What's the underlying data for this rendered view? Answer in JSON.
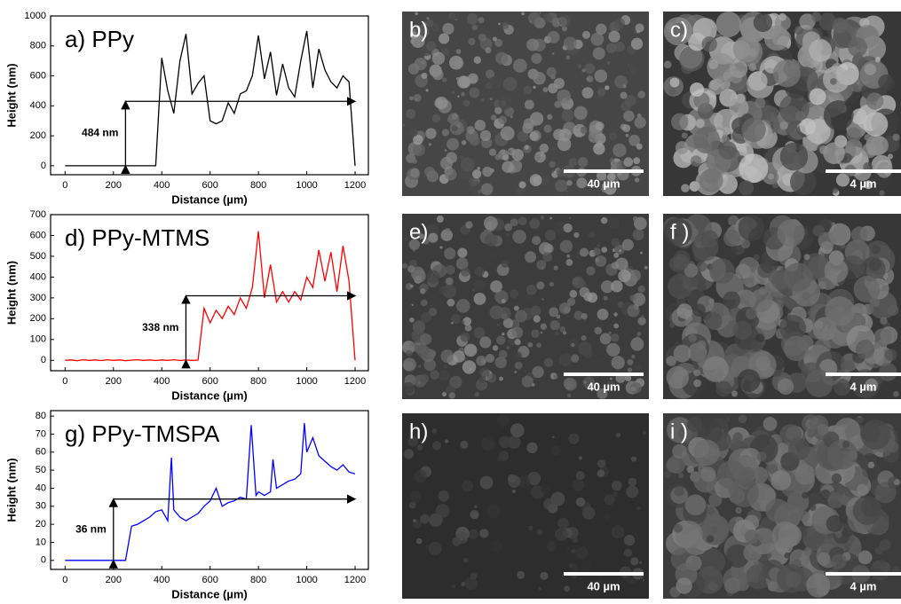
{
  "chart_data": [
    {
      "type": "line",
      "title": "a) PPy",
      "x_label": "Distance (µm)",
      "y_label": "Height (nm)",
      "color": "#000000",
      "x": [
        0,
        25,
        50,
        75,
        100,
        125,
        150,
        175,
        200,
        225,
        250,
        275,
        300,
        325,
        350,
        375,
        400,
        425,
        450,
        475,
        500,
        525,
        550,
        575,
        600,
        625,
        650,
        675,
        700,
        725,
        750,
        775,
        800,
        825,
        850,
        875,
        900,
        925,
        950,
        975,
        1000,
        1025,
        1050,
        1075,
        1100,
        1125,
        1150,
        1175,
        1200
      ],
      "values": [
        0,
        0,
        0,
        0,
        0,
        0,
        0,
        0,
        0,
        0,
        0,
        0,
        0,
        0,
        0,
        0,
        720,
        500,
        350,
        700,
        880,
        480,
        550,
        600,
        300,
        280,
        300,
        420,
        350,
        480,
        500,
        600,
        870,
        580,
        760,
        470,
        680,
        520,
        460,
        700,
        900,
        520,
        780,
        640,
        560,
        520,
        600,
        560,
        0
      ],
      "xlim": [
        -60,
        1255
      ],
      "ylim": [
        -60,
        1000
      ],
      "xticks": [
        0,
        200,
        400,
        600,
        800,
        1000,
        1200
      ],
      "yticks": [
        0,
        200,
        400,
        600,
        800,
        1000
      ],
      "annotation": {
        "text": "484 nm",
        "x": 250,
        "y": 430
      }
    },
    {
      "type": "line",
      "title": "d) PPy-MTMS",
      "x_label": "Distance (µm)",
      "y_label": "Height (nm)",
      "color": "#ff0000",
      "x": [
        0,
        25,
        50,
        75,
        100,
        125,
        150,
        175,
        200,
        225,
        250,
        275,
        300,
        325,
        350,
        375,
        400,
        425,
        450,
        475,
        500,
        525,
        550,
        575,
        600,
        625,
        650,
        675,
        700,
        725,
        750,
        775,
        800,
        825,
        850,
        875,
        900,
        925,
        950,
        975,
        1000,
        1025,
        1050,
        1075,
        1100,
        1125,
        1150,
        1175,
        1200
      ],
      "values": [
        0,
        2,
        -2,
        3,
        0,
        2,
        -1,
        3,
        0,
        2,
        -2,
        1,
        3,
        0,
        2,
        -1,
        2,
        0,
        3,
        -1,
        2,
        0,
        1,
        250,
        180,
        240,
        200,
        260,
        220,
        300,
        250,
        350,
        620,
        300,
        460,
        280,
        330,
        280,
        330,
        290,
        400,
        350,
        530,
        380,
        520,
        330,
        550,
        380,
        0
      ],
      "xlim": [
        -60,
        1255
      ],
      "ylim": [
        -50,
        700
      ],
      "xticks": [
        0,
        200,
        400,
        600,
        800,
        1000,
        1200
      ],
      "yticks": [
        0,
        100,
        200,
        300,
        400,
        500,
        600,
        700
      ],
      "annotation": {
        "text": "338 nm",
        "x": 500,
        "y": 310
      }
    },
    {
      "type": "line",
      "title": "g) PPy-TMSPA",
      "x_label": "Distance (µm)",
      "y_label": "Height (nm)",
      "color": "#0000ff",
      "x": [
        0,
        25,
        50,
        75,
        100,
        125,
        150,
        175,
        200,
        225,
        250,
        275,
        300,
        325,
        350,
        375,
        400,
        425,
        440,
        450,
        475,
        500,
        525,
        550,
        575,
        600,
        625,
        650,
        675,
        700,
        725,
        750,
        770,
        790,
        800,
        825,
        850,
        860,
        875,
        900,
        925,
        950,
        975,
        990,
        1000,
        1025,
        1050,
        1075,
        1100,
        1125,
        1150,
        1175,
        1200
      ],
      "values": [
        0,
        0,
        0,
        0,
        0,
        0,
        0,
        0,
        0,
        0,
        0,
        19,
        20,
        22,
        24,
        27,
        28,
        22,
        57,
        28,
        24,
        22,
        24,
        26,
        30,
        33,
        40,
        30,
        32,
        33,
        35,
        34,
        75,
        36,
        38,
        36,
        38,
        56,
        40,
        42,
        44,
        45,
        48,
        76,
        60,
        68,
        58,
        55,
        52,
        50,
        53,
        49,
        48
      ],
      "xlim": [
        -60,
        1255
      ],
      "ylim": [
        -5,
        83
      ],
      "xticks": [
        0,
        200,
        400,
        600,
        800,
        1000,
        1200
      ],
      "yticks": [
        0,
        10,
        20,
        30,
        40,
        50,
        60,
        70,
        80
      ],
      "annotation": {
        "text": "36 nm",
        "x": 200,
        "y": 34
      }
    }
  ],
  "images": [
    {
      "label": "b)",
      "scale_bar": "40 µm"
    },
    {
      "label": "c)",
      "scale_bar": "4 µm"
    },
    {
      "label": "e)",
      "scale_bar": "40 µm"
    },
    {
      "label": "f )",
      "scale_bar": "4 µm"
    },
    {
      "label": "h)",
      "scale_bar": "40 µm"
    },
    {
      "label": "i )",
      "scale_bar": "4 µm"
    }
  ]
}
